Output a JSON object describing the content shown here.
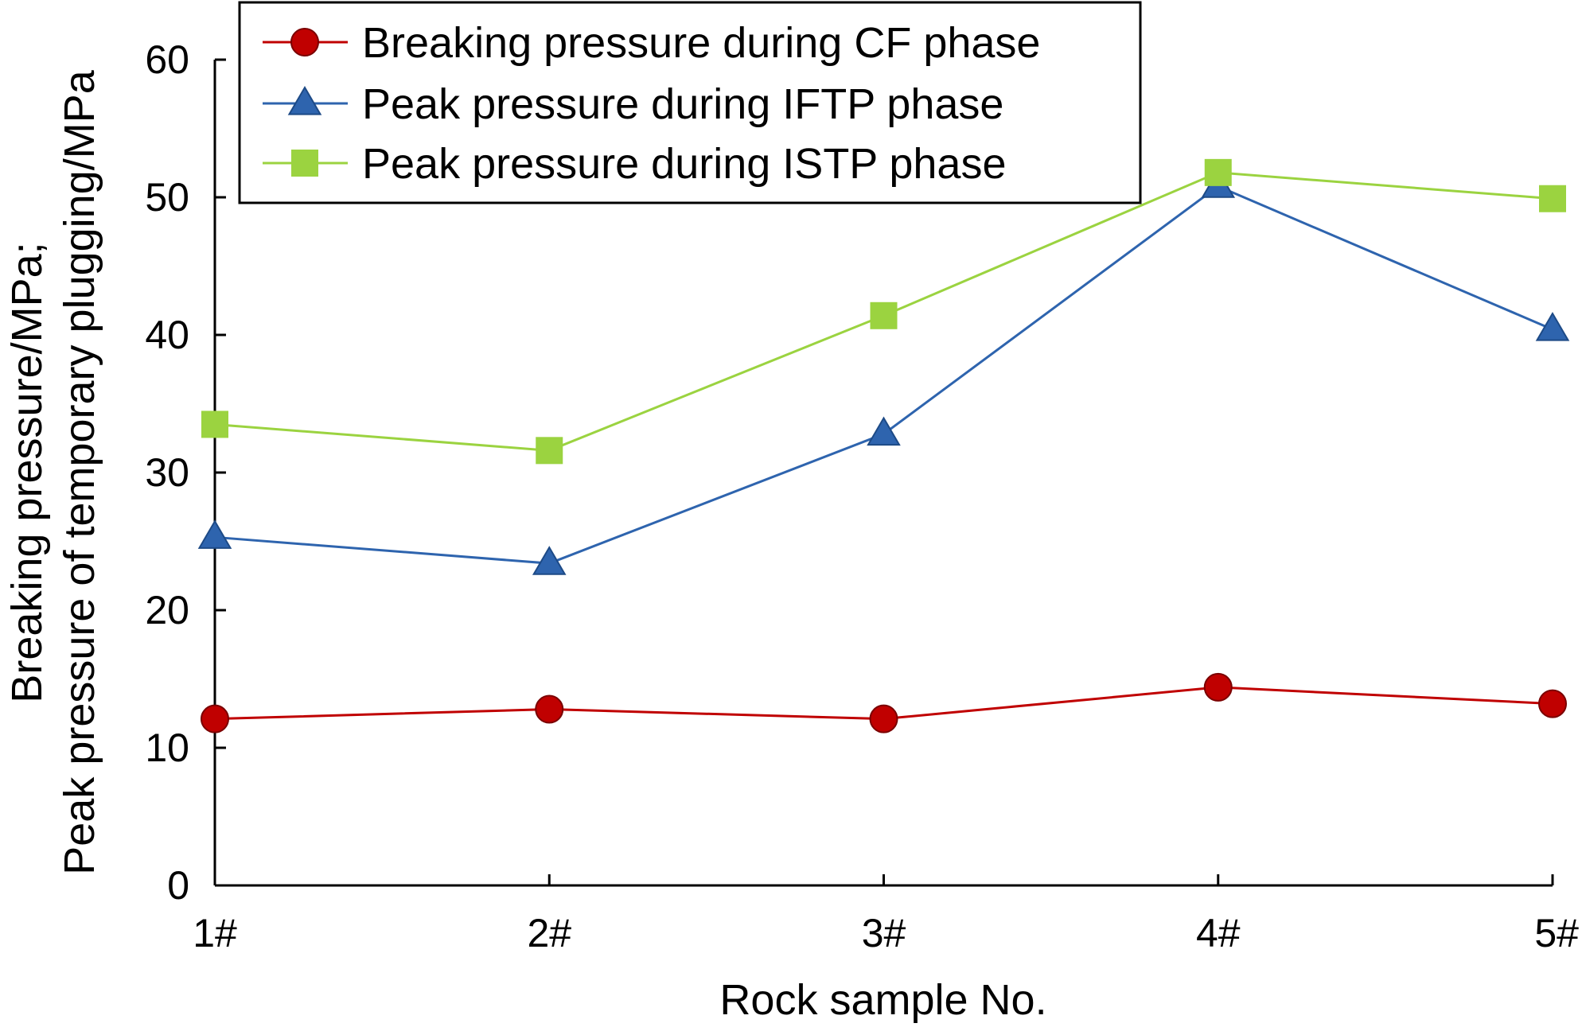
{
  "chart_data": {
    "type": "line",
    "title": "",
    "xlabel": "Rock sample No.",
    "ylabel_line1": "Breaking pressure/MPa;",
    "ylabel_line2": "Peak pressure of temporary plugging/MPa",
    "categories": [
      "1#",
      "2#",
      "3#",
      "4#",
      "5#"
    ],
    "ylim": [
      0,
      60
    ],
    "yticks": [
      0,
      10,
      20,
      30,
      40,
      50,
      60
    ],
    "grid": false,
    "legend_position": "top-left",
    "series": [
      {
        "name": "Breaking pressure during CF phase",
        "marker": "circle",
        "color": "#c00000",
        "line_color": "#c00000",
        "values": [
          12.1,
          12.8,
          12.1,
          14.4,
          13.2
        ]
      },
      {
        "name": "Peak pressure during IFTP phase",
        "marker": "triangle",
        "color": "#2e64ae",
        "line_color": "#2e64ae",
        "values": [
          25.3,
          23.4,
          32.8,
          50.8,
          40.4
        ]
      },
      {
        "name": "Peak pressure during ISTP phase",
        "marker": "square",
        "color": "#9bd340",
        "line_color": "#9bd340",
        "values": [
          33.5,
          31.6,
          41.4,
          51.8,
          49.9
        ]
      }
    ]
  }
}
